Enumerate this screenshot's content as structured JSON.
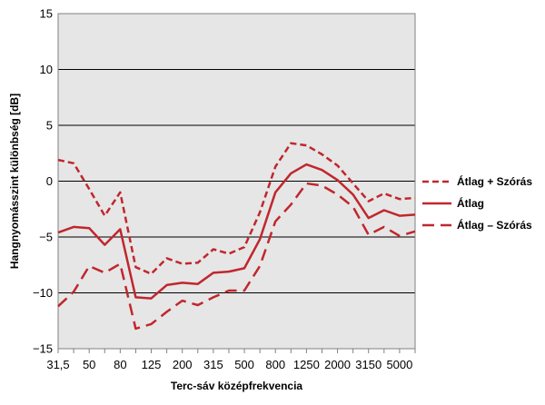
{
  "chart_data": {
    "type": "line",
    "title": "",
    "xlabel": "Terc-sáv középfrekvencia",
    "ylabel": "Hangnyomásszint különbség [dB]",
    "ylim": [
      -15,
      15
    ],
    "yticks": [
      -15,
      -10,
      -5,
      0,
      5,
      10,
      15
    ],
    "ytick_labels": [
      "−15",
      "−10",
      "−5",
      "0",
      "5",
      "10",
      "15"
    ],
    "grid": true,
    "legend_position": "right",
    "x": [
      "31,5",
      "40",
      "50",
      "63",
      "80",
      "100",
      "125",
      "160",
      "200",
      "250",
      "315",
      "400",
      "500",
      "630",
      "800",
      "1000",
      "1250",
      "1600",
      "2000",
      "2500",
      "3150",
      "4000",
      "5000",
      "6300"
    ],
    "xtick_labels": [
      "31,5",
      "",
      "50",
      "",
      "80",
      "",
      "125",
      "",
      "200",
      "",
      "315",
      "",
      "500",
      "",
      "800",
      "",
      "1250",
      "",
      "2000",
      "",
      "3150",
      "",
      "5000",
      ""
    ],
    "series": [
      {
        "name": "Átlag + Szórás",
        "style": "dashed",
        "color": "#c0272d",
        "values": [
          1.9,
          1.6,
          -0.7,
          -3.1,
          -1.0,
          -7.7,
          -8.3,
          -6.9,
          -7.4,
          -7.3,
          -6.1,
          -6.5,
          -5.9,
          -2.8,
          1.3,
          3.4,
          3.2,
          2.4,
          1.4,
          -0.2,
          -1.8,
          -1.1,
          -1.6,
          -1.5
        ]
      },
      {
        "name": "Átlag",
        "style": "solid",
        "color": "#c0272d",
        "values": [
          -4.6,
          -4.1,
          -4.2,
          -5.7,
          -4.3,
          -10.4,
          -10.5,
          -9.3,
          -9.1,
          -9.2,
          -8.2,
          -8.1,
          -7.8,
          -5.2,
          -1.0,
          0.7,
          1.5,
          1.0,
          0.1,
          -1.2,
          -3.3,
          -2.6,
          -3.1,
          -3.0
        ]
      },
      {
        "name": "Átlag – Szórás",
        "style": "longdash",
        "color": "#c0272d",
        "values": [
          -11.2,
          -9.9,
          -7.6,
          -8.2,
          -7.4,
          -13.2,
          -12.8,
          -11.7,
          -10.7,
          -11.1,
          -10.4,
          -9.8,
          -9.8,
          -7.6,
          -3.6,
          -2.1,
          -0.2,
          -0.4,
          -1.2,
          -2.3,
          -4.8,
          -4.1,
          -4.9,
          -4.5
        ]
      }
    ]
  }
}
